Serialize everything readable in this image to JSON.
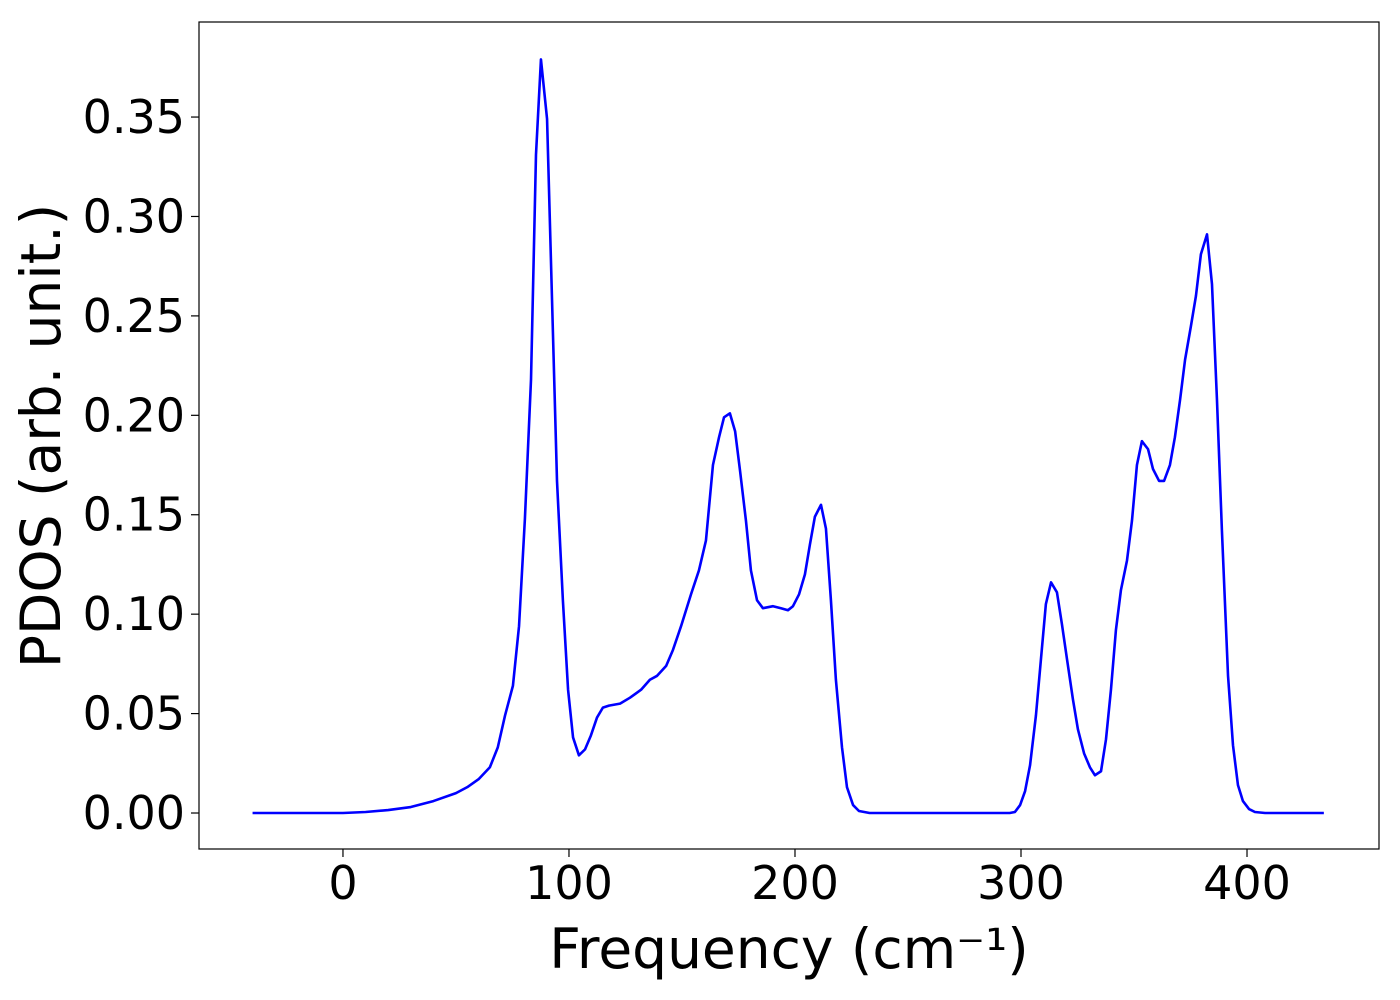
{
  "chart_data": {
    "type": "line",
    "xlabel": "Frequency (cm⁻¹)",
    "ylabel": "PDOS (arb. unit.)",
    "xlim": [
      -63.7,
      458.4
    ],
    "ylim": [
      -0.0181,
      0.3978
    ],
    "xticks": [
      0,
      100,
      200,
      300,
      400
    ],
    "yticks": [
      {
        "value": 0,
        "label": "0.00"
      },
      0.05,
      {
        "value": 0.1,
        "label": "0.10"
      },
      0.15,
      {
        "value": 0.2,
        "label": "0.20"
      },
      0.25,
      {
        "value": 0.3,
        "label": "0.30"
      },
      0.35
    ],
    "grid": false,
    "series": [
      {
        "color": "#0000ff",
        "x": [
          -40,
          0,
          10,
          20,
          30,
          40,
          50,
          55,
          60,
          65,
          68.5,
          71.7,
          75.2,
          77.9,
          80.5,
          83.2,
          85.4,
          87.6,
          90.3,
          92.5,
          94.7,
          97.3,
          99.6,
          101.8,
          104.4,
          107.1,
          109.7,
          112.4,
          115,
          117.7,
          122.6,
          127,
          131.9,
          135.8,
          139,
          143,
          146,
          149.6,
          154,
          157.5,
          160.6,
          163.7,
          166.4,
          168.6,
          171.2,
          173.5,
          175.7,
          178.3,
          180.5,
          183.2,
          185.8,
          190.3,
          193.8,
          196.9,
          199.1,
          201.8,
          204.4,
          206.6,
          208.8,
          211.5,
          213.7,
          215.9,
          218.1,
          220.8,
          223,
          225.7,
          228.3,
          233,
          295,
          297.3,
          299.6,
          301.8,
          304,
          306.6,
          308.8,
          311,
          313.3,
          315.9,
          318.1,
          320.4,
          323,
          325.2,
          327.9,
          330.5,
          332.7,
          335.4,
          337.6,
          339.8,
          342,
          344.2,
          346.9,
          349.1,
          351.3,
          353.5,
          356.2,
          358.4,
          361.1,
          363.3,
          365.9,
          368.1,
          370.4,
          372.6,
          375.2,
          377.4,
          379.6,
          382.3,
          384.5,
          386.7,
          388.9,
          391.6,
          393.8,
          396,
          398.2,
          400.9,
          403.5,
          408,
          434
        ],
        "values": [
          0,
          0,
          0.0005,
          0.0015,
          0.003,
          0.006,
          0.01,
          0.013,
          0.017,
          0.023,
          0.033,
          0.049,
          0.064,
          0.094,
          0.148,
          0.218,
          0.331,
          0.379,
          0.349,
          0.258,
          0.167,
          0.107,
          0.062,
          0.038,
          0.029,
          0.032,
          0.039,
          0.048,
          0.053,
          0.054,
          0.055,
          0.058,
          0.062,
          0.067,
          0.069,
          0.074,
          0.082,
          0.094,
          0.11,
          0.122,
          0.137,
          0.175,
          0.189,
          0.199,
          0.201,
          0.192,
          0.172,
          0.147,
          0.122,
          0.107,
          0.103,
          0.104,
          0.103,
          0.102,
          0.104,
          0.11,
          0.12,
          0.135,
          0.149,
          0.155,
          0.143,
          0.107,
          0.067,
          0.033,
          0.013,
          0.004,
          0.001,
          0,
          0,
          0.0005,
          0.004,
          0.011,
          0.024,
          0.049,
          0.077,
          0.105,
          0.116,
          0.111,
          0.095,
          0.077,
          0.057,
          0.042,
          0.03,
          0.023,
          0.019,
          0.021,
          0.037,
          0.062,
          0.092,
          0.112,
          0.127,
          0.147,
          0.175,
          0.187,
          0.183,
          0.173,
          0.167,
          0.167,
          0.175,
          0.189,
          0.208,
          0.228,
          0.245,
          0.26,
          0.281,
          0.291,
          0.266,
          0.208,
          0.142,
          0.069,
          0.034,
          0.014,
          0.006,
          0.002,
          0.0005,
          0,
          0
        ]
      }
    ]
  }
}
